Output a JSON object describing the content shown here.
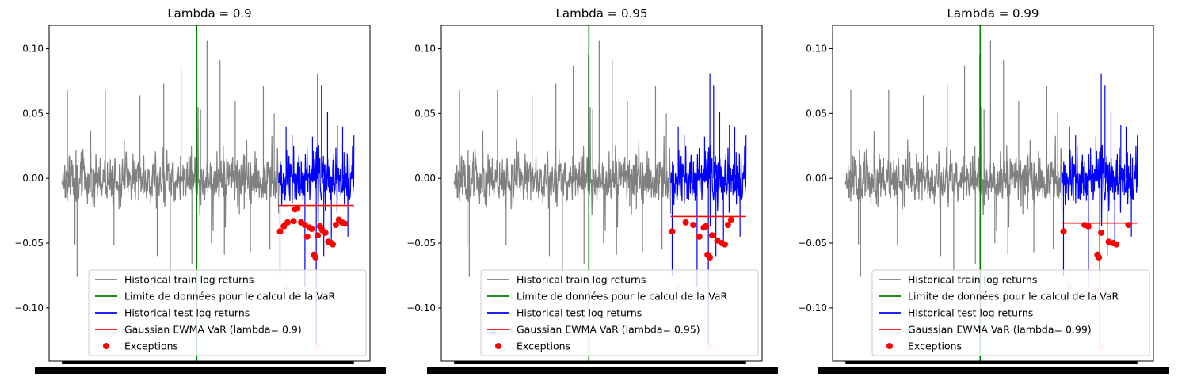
{
  "figure": {
    "panels": [
      {
        "title": "Lambda = 0.9",
        "lambda": 0.9,
        "var_level": -0.021,
        "legend": {
          "train": "Historical train log returns",
          "limit": "Limite de données pour le calcul de la VaR",
          "test": "Historical test log returns",
          "var": "Gaussian EWMA VaR (lambda= 0.9)",
          "exceptions": "Exceptions"
        }
      },
      {
        "title": "Lambda = 0.95",
        "lambda": 0.95,
        "var_level": -0.0295,
        "legend": {
          "train": "Historical train log returns",
          "limit": "Limite de données pour le calcul de la VaR",
          "test": "Historical test log returns",
          "var": "Gaussian EWMA VaR (lambda= 0.95)",
          "exceptions": "Exceptions"
        }
      },
      {
        "title": "Lambda = 0.99",
        "lambda": 0.99,
        "var_level": -0.0345,
        "legend": {
          "train": "Historical train log returns",
          "limit": "Limite de données pour le calcul de la VaR",
          "test": "Historical test log returns",
          "var": "Gaussian EWMA VaR (lambda= 0.99)",
          "exceptions": "Exceptions"
        }
      }
    ],
    "y_ticks": [
      "0.10",
      "0.05",
      "0.00",
      "−0.05",
      "−0.10"
    ]
  },
  "chart_data": {
    "type": "line",
    "ylim": [
      -0.141,
      0.118
    ],
    "ytick_values": [
      0.1,
      0.05,
      0.0,
      -0.05,
      -0.1
    ],
    "colors": {
      "train": "#808080",
      "limit": "#008000",
      "test": "#0000ff",
      "var": "#ff0000",
      "exceptions": "#ff0000",
      "exceptions_faded": "#ffc0cb"
    },
    "x_note": "dense overlapping date tick labels render as a solid black band",
    "series_summary": {
      "train_envelope": [
        -0.076,
        0.106
      ],
      "test_envelope": [
        -0.13,
        0.081
      ]
    },
    "exception_values": {
      "lambda_0.9": [
        -0.041,
        -0.037,
        -0.034,
        -0.033,
        -0.024,
        -0.023,
        -0.034,
        -0.036,
        -0.045,
        -0.038,
        -0.039,
        -0.059,
        -0.061,
        -0.044,
        -0.037,
        -0.04,
        -0.042,
        -0.049,
        -0.05,
        -0.051,
        -0.036,
        -0.032,
        -0.034,
        -0.035
      ],
      "lambda_0.95": [
        -0.041,
        -0.034,
        -0.036,
        -0.045,
        -0.038,
        -0.037,
        -0.059,
        -0.061,
        -0.044,
        -0.048,
        -0.05,
        -0.051,
        -0.036,
        -0.032
      ],
      "lambda_0.99": [
        -0.041,
        -0.036,
        -0.037,
        -0.059,
        -0.061,
        -0.042,
        -0.049,
        -0.05,
        -0.051,
        -0.036
      ],
      "common_extremes": [
        -0.084,
        -0.088,
        -0.13
      ]
    }
  }
}
